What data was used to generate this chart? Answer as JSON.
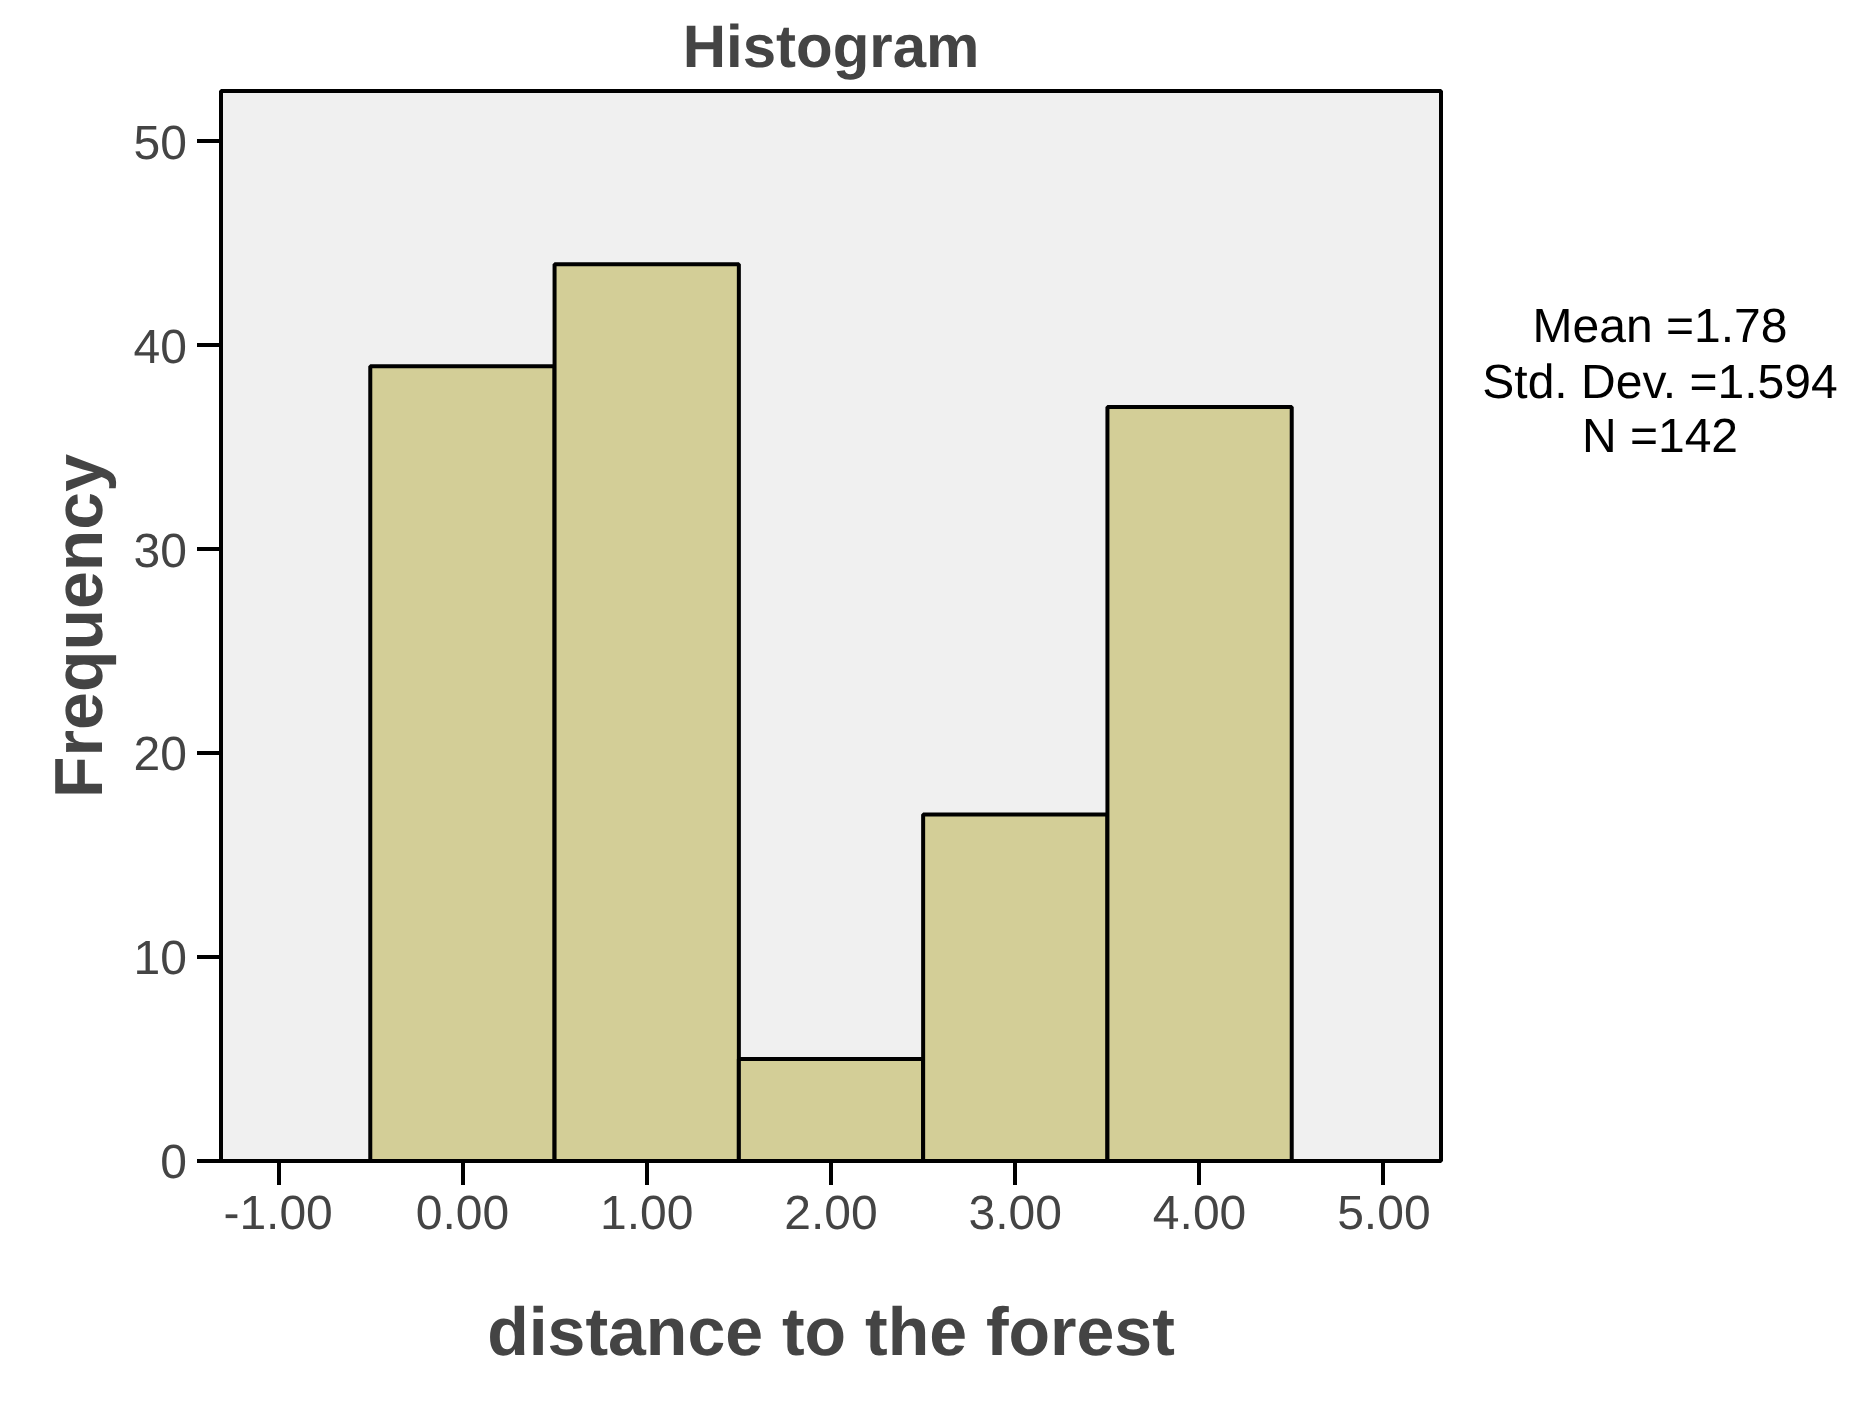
{
  "chart_data": {
    "type": "histogram",
    "title": "Histogram",
    "xlabel": "distance to the forest",
    "ylabel": "Frequency",
    "bins": [
      -0.5,
      0.5,
      1.5,
      2.5,
      3.5,
      4.5
    ],
    "values": [
      39,
      44,
      5,
      17,
      37
    ],
    "color": "#d3ce97",
    "xlim": [
      -1.31,
      5.31
    ],
    "xticks": [
      {
        "value": -1,
        "label": "-1.00"
      },
      {
        "value": 0,
        "label": "0.00"
      },
      {
        "value": 1,
        "label": "1.00"
      },
      {
        "value": 2,
        "label": "2.00"
      },
      {
        "value": 3,
        "label": "3.00"
      },
      {
        "value": 4,
        "label": "4.00"
      },
      {
        "value": 5,
        "label": "5.00"
      }
    ],
    "ylim": [
      0,
      52.5
    ],
    "yticks": [
      0,
      10,
      20,
      30,
      40,
      50
    ],
    "grid": false,
    "annotations": [
      "Mean =1.78",
      "Std. Dev. =1.594",
      "N =142"
    ]
  }
}
